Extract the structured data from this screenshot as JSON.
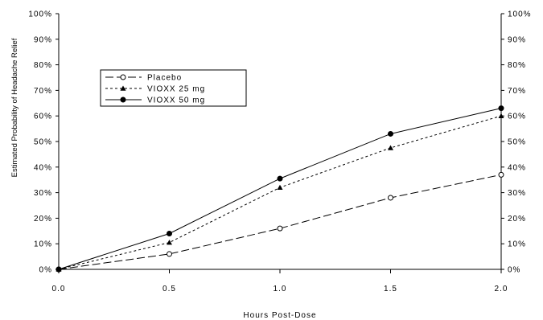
{
  "chart_data": {
    "type": "line",
    "title": "",
    "xlabel": "Hours Post-Dose",
    "ylabel": "Estimated Probability of Headache Relief",
    "xlim": [
      0.0,
      2.0
    ],
    "ylim": [
      0,
      100
    ],
    "x_ticks": [
      "0.0",
      "0.5",
      "1.0",
      "1.5",
      "2.0"
    ],
    "y_ticks": [
      "0%",
      "10%",
      "20%",
      "30%",
      "40%",
      "50%",
      "60%",
      "70%",
      "80%",
      "90%",
      "100%"
    ],
    "y_ticks_right": [
      "0%",
      "10%",
      "20%",
      "30%",
      "40%",
      "50%",
      "60%",
      "70%",
      "80%",
      "90%",
      "100%"
    ],
    "x": [
      0.0,
      0.5,
      1.0,
      1.5,
      2.0
    ],
    "grid": false,
    "legend_placement": "upper-left",
    "series": [
      {
        "name": "Placebo",
        "values": [
          0,
          6,
          16,
          28,
          37
        ],
        "line_style": "long-dash",
        "marker": "open-circle",
        "color": "#000000"
      },
      {
        "name": "VIOXX 25 mg",
        "values": [
          0,
          10.5,
          32,
          47.5,
          60
        ],
        "line_style": "short-dash",
        "marker": "filled-triangle",
        "color": "#000000"
      },
      {
        "name": "VIOXX 50 mg",
        "values": [
          0,
          14,
          35.5,
          53,
          63
        ],
        "line_style": "solid",
        "marker": "filled-circle",
        "color": "#000000"
      }
    ]
  }
}
